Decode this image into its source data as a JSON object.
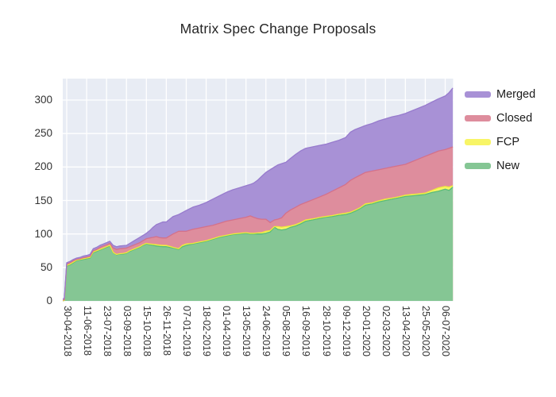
{
  "title": "Matrix Spec Change Proposals",
  "chart_data": {
    "type": "area",
    "stacked": true,
    "title": "Matrix Spec Change Proposals",
    "grid": true,
    "plot_bg": "#e8ecf4",
    "grid_color": "#ffffff",
    "text_color": "#333333",
    "legend_position": "right-outside",
    "legend_order_top_to_bottom": [
      "Merged",
      "Closed",
      "FCP",
      "New"
    ],
    "x_axis": {
      "unit": "days since first point",
      "tick_labels": [
        "30-04-2018",
        "11-06-2018",
        "23-07-2018",
        "03-09-2018",
        "15-10-2018",
        "26-11-2018",
        "07-01-2019",
        "18-02-2019",
        "01-04-2019",
        "13-05-2019",
        "24-06-2019",
        "05-08-2019",
        "16-09-2019",
        "28-10-2019",
        "09-12-2019",
        "20-01-2020",
        "02-03-2020",
        "13-04-2020",
        "25-05-2020",
        "06-07-2020"
      ],
      "tick_days": [
        8,
        50,
        92,
        134,
        176,
        218,
        260,
        302,
        344,
        386,
        428,
        470,
        512,
        554,
        596,
        638,
        680,
        722,
        764,
        806
      ],
      "domain_days": [
        0,
        822
      ]
    },
    "y_axis": {
      "ticks": [
        0,
        50,
        100,
        150,
        200,
        250,
        300
      ],
      "range": [
        0,
        332
      ]
    },
    "days": [
      0,
      3,
      8,
      15,
      22,
      29,
      36,
      43,
      50,
      57,
      64,
      71,
      78,
      85,
      92,
      99,
      106,
      113,
      120,
      127,
      134,
      141,
      148,
      155,
      162,
      169,
      176,
      183,
      190,
      197,
      204,
      211,
      218,
      232,
      244,
      252,
      260,
      274,
      288,
      302,
      316,
      330,
      344,
      358,
      372,
      386,
      395,
      402,
      410,
      419,
      428,
      437,
      446,
      453,
      461,
      470,
      480,
      491,
      501,
      512,
      526,
      540,
      554,
      568,
      582,
      596,
      606,
      616,
      627,
      638,
      652,
      666,
      680,
      694,
      708,
      722,
      736,
      750,
      764,
      778,
      792,
      806,
      814,
      822
    ],
    "series": [
      {
        "name": "New",
        "fill": "#85c694",
        "stroke": "#5abc77",
        "values": [
          0,
          1,
          52,
          54,
          57,
          60,
          61,
          62,
          63,
          64,
          72,
          74,
          76,
          78,
          80,
          82,
          72,
          69,
          70,
          70,
          71,
          74,
          76,
          78,
          80,
          83,
          85,
          84,
          83,
          82,
          81.5,
          81,
          81,
          79,
          77,
          81,
          83,
          85,
          87,
          89,
          92,
          95,
          97,
          99,
          100,
          101,
          100,
          100,
          100,
          100,
          101,
          103,
          110,
          107,
          106,
          107,
          110,
          112,
          115,
          119,
          121,
          123,
          125,
          126,
          128,
          129,
          131,
          134,
          138,
          143,
          145,
          148,
          150,
          152,
          154,
          156,
          157,
          158,
          159,
          162,
          164,
          167,
          165,
          170
        ]
      },
      {
        "name": "FCP",
        "fill": "#f8f566",
        "stroke": "#eeea3a",
        "values": [
          0,
          0,
          1,
          1,
          1,
          1,
          1,
          1,
          1,
          1,
          1,
          1,
          1,
          1,
          1,
          1,
          0.5,
          0.5,
          0.5,
          1,
          1,
          1,
          1,
          1,
          1,
          1,
          1,
          1,
          1.5,
          2,
          2,
          2,
          2,
          1,
          1,
          2,
          2,
          1,
          1,
          1,
          1,
          1,
          1,
          1,
          1,
          1,
          1,
          1,
          1.5,
          2,
          3,
          2,
          1,
          4,
          4,
          4,
          2,
          2,
          2,
          2,
          1.5,
          1.5,
          1,
          1.5,
          1.5,
          2,
          1.5,
          1.5,
          1.5,
          2,
          1.5,
          1.5,
          2,
          1.5,
          1.5,
          2,
          2,
          2,
          2,
          3,
          5,
          4,
          5,
          2
        ]
      },
      {
        "name": "Closed",
        "fill": "#de8d9d",
        "stroke": "#d4718a",
        "values": [
          1,
          1,
          2,
          2,
          2,
          1,
          1,
          1.5,
          1.5,
          1.5,
          2,
          2,
          3,
          3,
          3,
          3,
          6.5,
          7.5,
          7.5,
          7.5,
          7,
          6,
          6,
          6,
          6,
          6,
          7,
          9,
          10.5,
          12,
          11,
          11,
          11,
          20,
          26,
          21,
          19,
          21,
          21,
          21,
          20,
          20,
          21,
          21,
          22,
          23,
          26,
          24,
          21.5,
          20,
          18,
          12,
          10,
          11,
          14,
          20,
          24,
          26,
          27,
          26,
          28.5,
          30.5,
          33,
          36.5,
          39.5,
          43,
          47.5,
          48.5,
          48.5,
          47,
          47.5,
          46.5,
          46,
          46.5,
          46.5,
          46,
          49,
          52,
          55,
          55,
          55,
          55,
          58,
          58
        ]
      },
      {
        "name": "Merged",
        "fill": "#a891d6",
        "stroke": "#977bcd",
        "values": [
          2,
          2,
          2,
          2,
          2,
          2,
          2,
          2.5,
          2.5,
          3,
          3,
          3,
          3,
          3,
          3,
          3,
          4,
          4,
          4,
          4,
          4,
          5,
          6,
          7,
          8,
          8,
          8,
          11,
          15,
          18,
          21.5,
          24,
          24,
          26,
          25,
          28,
          31,
          33,
          34,
          36,
          39,
          41,
          43,
          45,
          46,
          47,
          47,
          51,
          57,
          64,
          70,
          79,
          79,
          81,
          81,
          76,
          77,
          79,
          80,
          81,
          79,
          77,
          75,
          73,
          71,
          70,
          72,
          72,
          71,
          70,
          71,
          73,
          74,
          75,
          75,
          76,
          76,
          76,
          76,
          77,
          78,
          80,
          83,
          88
        ]
      }
    ]
  }
}
